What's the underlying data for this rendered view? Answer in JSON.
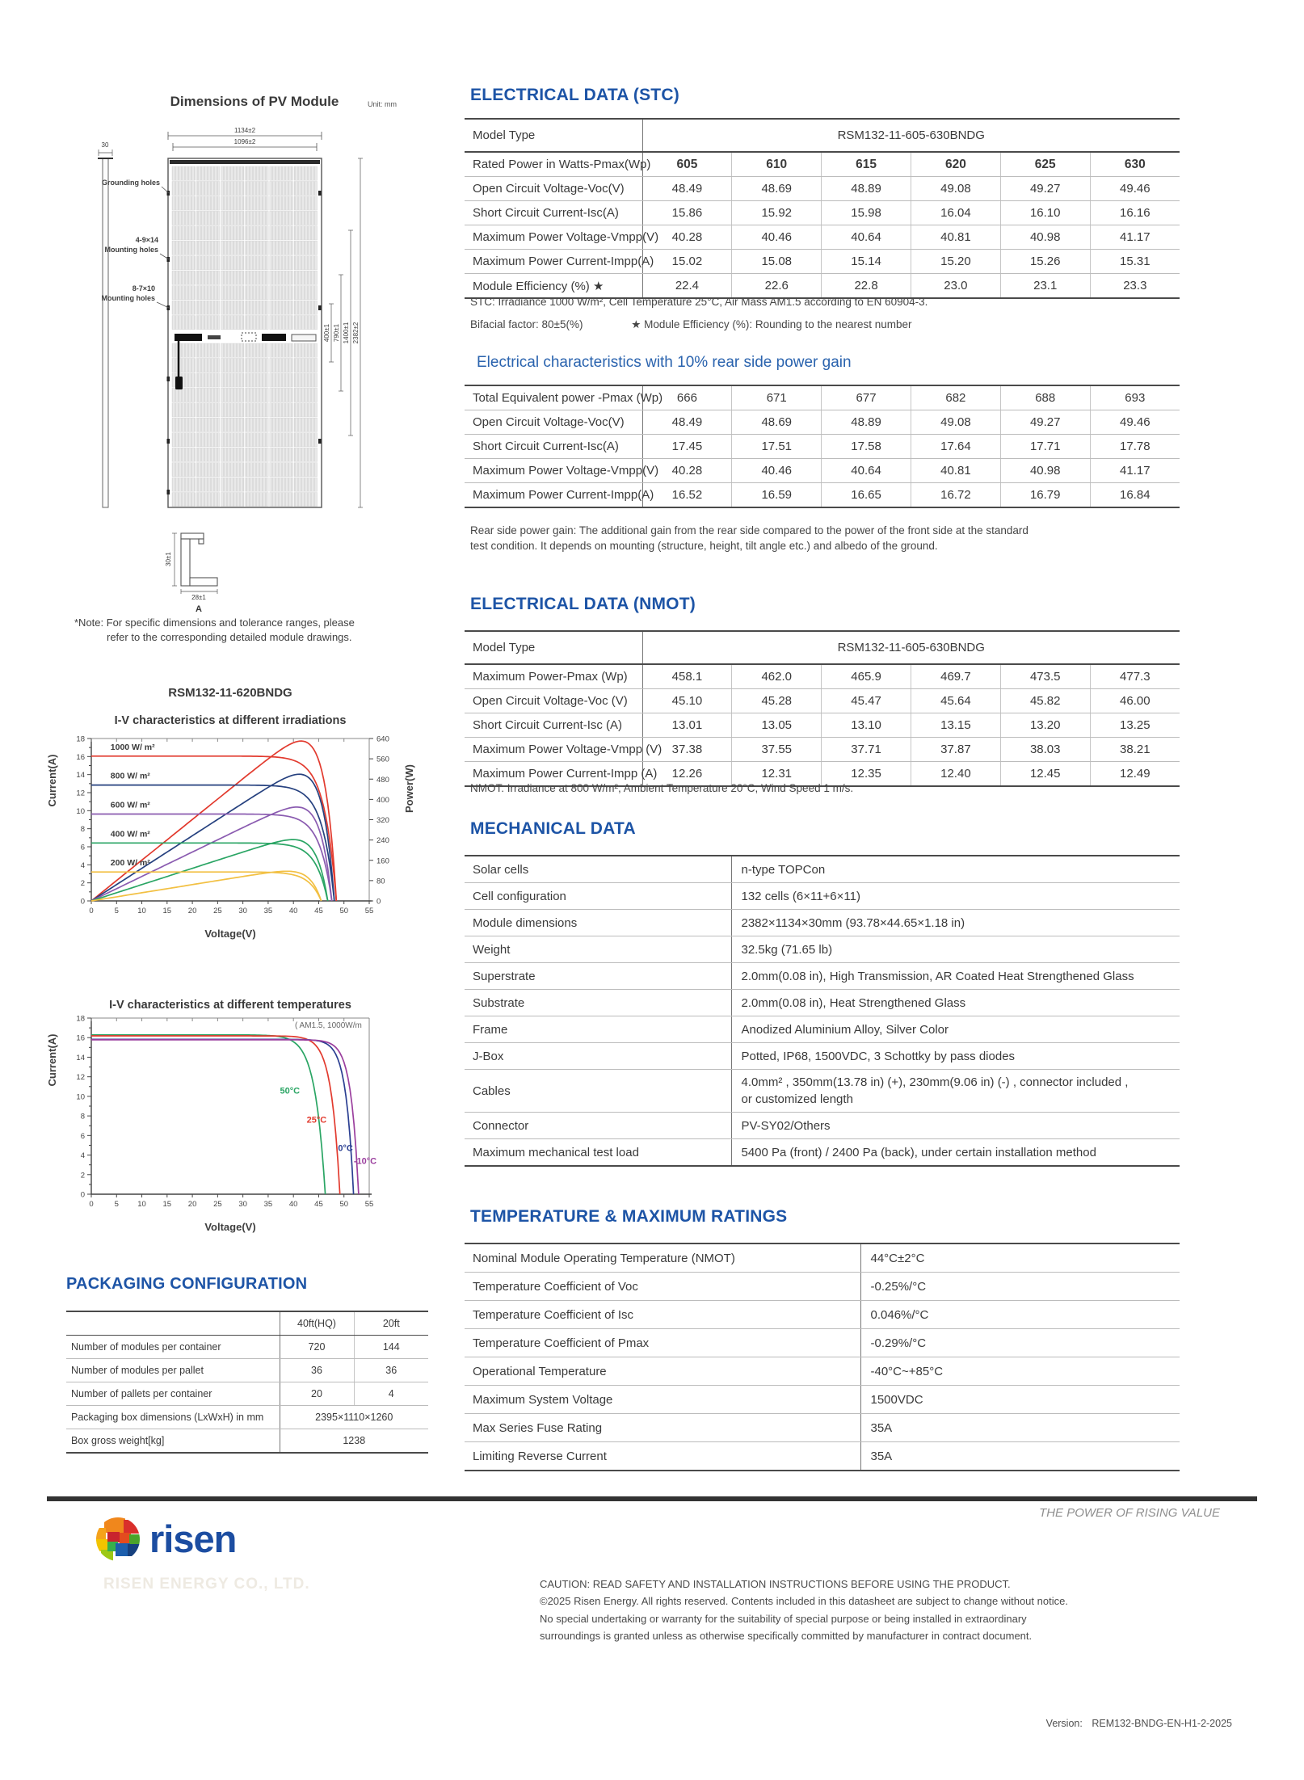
{
  "colors": {
    "heading_blue": "#1d54a6",
    "subheading_blue": "#2a63ae",
    "brand_blue": "#1c4da1",
    "rule_dark": "#333333"
  },
  "diagram": {
    "title": "Dimensions of PV Module",
    "unit": "Unit: mm",
    "dim_width": "1134±2",
    "dim_width_inner": "1096±2",
    "dim_side": "30",
    "label_grounding": "Grounding holes",
    "label_mount1a": "4-9×14",
    "label_mount1b": "Mounting holes",
    "label_mount2a": "8-7×10",
    "label_mount2b": "Mounting holes",
    "dim_r1": "400±1",
    "dim_r2": "790±1",
    "dim_r3": "1400±1",
    "dim_r4": "2382±2",
    "frame_h": "30±1",
    "frame_w": "28±1",
    "frame_label": "A",
    "note1": "*Note: For specific dimensions and tolerance ranges, please",
    "note2": "refer to the corresponding detailed module drawings."
  },
  "stc": {
    "heading": "ELECTRICAL DATA (STC)",
    "model_label": "Model Type",
    "model_value": "RSM132-11-605-630BNDG",
    "rows": [
      {
        "label": "Rated Power in Watts-Pmax(Wp)",
        "bold": true,
        "values": [
          "605",
          "610",
          "615",
          "620",
          "625",
          "630"
        ]
      },
      {
        "label": "Open Circuit Voltage-Voc(V)",
        "values": [
          "48.49",
          "48.69",
          "48.89",
          "49.08",
          "49.27",
          "49.46"
        ]
      },
      {
        "label": "Short Circuit Current-Isc(A)",
        "values": [
          "15.86",
          "15.92",
          "15.98",
          "16.04",
          "16.10",
          "16.16"
        ]
      },
      {
        "label": "Maximum Power Voltage-Vmpp(V)",
        "values": [
          "40.28",
          "40.46",
          "40.64",
          "40.81",
          "40.98",
          "41.17"
        ]
      },
      {
        "label": "Maximum Power Current-Impp(A)",
        "values": [
          "15.02",
          "15.08",
          "15.14",
          "15.20",
          "15.26",
          "15.31"
        ]
      },
      {
        "label": "Module Efficiency (%) ★",
        "values": [
          "22.4",
          "22.6",
          "22.8",
          "23.0",
          "23.1",
          "23.3"
        ]
      }
    ],
    "note": "STC: Irradiance 1000 W/m², Cell Temperature 25°C, Air Mass AM1.5 according to EN 60904-3.",
    "bifacial_note": "Bifacial factor: 80±5(%)",
    "efficiency_note": "★ Module Efficiency (%): Rounding to the nearest number"
  },
  "rear": {
    "heading": "Electrical characteristics with 10% rear side power gain",
    "rows": [
      {
        "label": "Total Equivalent power -Pmax (Wp)",
        "values": [
          "666",
          "671",
          "677",
          "682",
          "688",
          "693"
        ]
      },
      {
        "label": "Open Circuit Voltage-Voc(V)",
        "values": [
          "48.49",
          "48.69",
          "48.89",
          "49.08",
          "49.27",
          "49.46"
        ]
      },
      {
        "label": "Short Circuit Current-Isc(A)",
        "values": [
          "17.45",
          "17.51",
          "17.58",
          "17.64",
          "17.71",
          "17.78"
        ]
      },
      {
        "label": "Maximum Power Voltage-Vmpp(V)",
        "values": [
          "40.28",
          "40.46",
          "40.64",
          "40.81",
          "40.98",
          "41.17"
        ]
      },
      {
        "label": "Maximum Power Current-Impp(A)",
        "values": [
          "16.52",
          "16.59",
          "16.65",
          "16.72",
          "16.79",
          "16.84"
        ]
      }
    ],
    "note1": "Rear side power gain: The additional gain from the rear side compared to the power of the front side at the standard",
    "note2": "test condition. It depends on mounting (structure, height, tilt angle etc.) and albedo of the ground."
  },
  "nmot": {
    "heading": "ELECTRICAL DATA (NMOT)",
    "model_label": "Model Type",
    "model_value": "RSM132-11-605-630BNDG",
    "rows": [
      {
        "label": "Maximum Power-Pmax (Wp)",
        "values": [
          "458.1",
          "462.0",
          "465.9",
          "469.7",
          "473.5",
          "477.3"
        ]
      },
      {
        "label": "Open Circuit Voltage-Voc (V)",
        "values": [
          "45.10",
          "45.28",
          "45.47",
          "45.64",
          "45.82",
          "46.00"
        ]
      },
      {
        "label": "Short Circuit Current-Isc (A)",
        "values": [
          "13.01",
          "13.05",
          "13.10",
          "13.15",
          "13.20",
          "13.25"
        ]
      },
      {
        "label": "Maximum Power Voltage-Vmpp (V)",
        "values": [
          "37.38",
          "37.55",
          "37.71",
          "37.87",
          "38.03",
          "38.21"
        ]
      },
      {
        "label": "Maximum Power Current-Impp (A)",
        "values": [
          "12.26",
          "12.31",
          "12.35",
          "12.40",
          "12.45",
          "12.49"
        ]
      }
    ],
    "note": "NMOT: Irradiance at 800 W/m², Ambient Temperature 20°C, Wind Speed 1 m/s."
  },
  "mechanical": {
    "heading": "MECHANICAL DATA",
    "rows": [
      {
        "label": "Solar cells",
        "value": "n-type TOPCon"
      },
      {
        "label": "Cell configuration",
        "value": "132 cells (6×11+6×11)"
      },
      {
        "label": "Module dimensions",
        "value": "2382×1134×30mm (93.78×44.65×1.18 in)"
      },
      {
        "label": "Weight",
        "value": "32.5kg (71.65 lb)"
      },
      {
        "label": "Superstrate",
        "value": "2.0mm(0.08 in), High Transmission, AR Coated Heat Strengthened Glass"
      },
      {
        "label": "Substrate",
        "value": "2.0mm(0.08 in), Heat Strengthened Glass"
      },
      {
        "label": "Frame",
        "value": "Anodized Aluminium Alloy, Silver Color"
      },
      {
        "label": "J-Box",
        "value": "Potted, IP68, 1500VDC, 3 Schottky by pass diodes"
      },
      {
        "label": "Cables",
        "value": [
          "4.0mm² , 350mm(13.78 in) (+), 230mm(9.06 in) (-) , connector included ,",
          "or customized length"
        ]
      },
      {
        "label": "Connector",
        "value": "PV-SY02/Others"
      },
      {
        "label": "Maximum mechanical test load",
        "value": "5400 Pa (front) / 2400 Pa (back), under certain installation method"
      }
    ]
  },
  "temperature": {
    "heading": "TEMPERATURE & MAXIMUM RATINGS",
    "rows": [
      {
        "label": "Nominal Module Operating Temperature (NMOT)",
        "value": "44°C±2°C"
      },
      {
        "label": "Temperature Coefficient of Voc",
        "value": "-0.25%/°C"
      },
      {
        "label": "Temperature Coefficient of Isc",
        "value": "0.046%/°C"
      },
      {
        "label": "Temperature Coefficient of Pmax",
        "value": "-0.29%/°C"
      },
      {
        "label": "Operational Temperature",
        "value": "-40°C~+85°C"
      },
      {
        "label": "Maximum System Voltage",
        "value": "1500VDC"
      },
      {
        "label": "Max Series Fuse Rating",
        "value": "35A"
      },
      {
        "label": "Limiting Reverse Current",
        "value": "35A"
      }
    ]
  },
  "packaging": {
    "heading": "PACKAGING CONFIGURATION",
    "col_headers": [
      "40ft(HQ)",
      "20ft"
    ],
    "rows": [
      {
        "label": "Number of modules per container",
        "values": [
          "720",
          "144"
        ]
      },
      {
        "label": "Number of modules per pallet",
        "values": [
          "36",
          "36"
        ]
      },
      {
        "label": "Number of pallets per container",
        "values": [
          "20",
          "4"
        ]
      }
    ],
    "span_rows": [
      {
        "label": "Packaging box dimensions (LxWxH) in mm",
        "value": "2395×1110×1260"
      },
      {
        "label": "Box gross weight[kg]",
        "value": "1238"
      }
    ]
  },
  "chart_data": [
    {
      "type": "line",
      "title": "RSM132-11-620BNDG",
      "subtitle": "I-V characteristics at different irradiations",
      "xlabel": "Voltage(V)",
      "ylabel_left": "Current(A)",
      "ylabel_right": "Power(W)",
      "xlim": [
        0,
        55
      ],
      "xstep": 5,
      "ylim_left": [
        0,
        18
      ],
      "ystep_left": 2,
      "ylim_right": [
        0,
        640
      ],
      "ystep_right": 80,
      "grid": false,
      "series": [
        {
          "label": "1000 W/ m²",
          "color": "#e23a2e",
          "isc": 16.05,
          "voc": 48.5,
          "a": 2.4,
          "pmax": 620
        },
        {
          "label": "800 W/ m²",
          "color": "#26417f",
          "isc": 12.84,
          "voc": 48.1,
          "a": 2.4,
          "pmax": 494
        },
        {
          "label": "600 W/ m²",
          "color": "#8a5bb0",
          "isc": 9.63,
          "voc": 47.6,
          "a": 2.4,
          "pmax": 368
        },
        {
          "label": "400 W/ m²",
          "color": "#2aa564",
          "isc": 6.42,
          "voc": 46.8,
          "a": 2.4,
          "pmax": 241
        },
        {
          "label": "200 W/ m²",
          "color": "#f2c043",
          "isc": 3.21,
          "voc": 45.5,
          "a": 2.4,
          "pmax": 117
        }
      ]
    },
    {
      "type": "line",
      "title": "I-V characteristics at different temperatures",
      "condition_note": "( AM1.5,  1000W/m",
      "xlabel": "Voltage(V)",
      "ylabel_left": "Current(A)",
      "xlim": [
        0,
        55
      ],
      "xstep": 5,
      "ylim_left": [
        0,
        18
      ],
      "ystep_left": 2,
      "grid": false,
      "series": [
        {
          "label": "50°C",
          "color": "#2aa564",
          "isc": 16.28,
          "voc": 46.3,
          "a": 2.0,
          "label_pos": [
            39.3,
            10.3
          ]
        },
        {
          "label": "25°C",
          "color": "#e23a2e",
          "isc": 16.18,
          "voc": 49.2,
          "a": 1.7,
          "label_pos": [
            44.6,
            7.3
          ]
        },
        {
          "label": "0°C",
          "color": "#2b3f92",
          "isc": 15.82,
          "voc": 51.9,
          "a": 1.5,
          "label_pos": [
            50.3,
            4.4
          ]
        },
        {
          "label": "-10°C",
          "color": "#9b3f9e",
          "isc": 15.78,
          "voc": 52.9,
          "a": 1.5,
          "label_pos": [
            54.2,
            3.1
          ]
        }
      ]
    }
  ],
  "footer": {
    "tagline": "THE POWER OF RISING VALUE",
    "brand": "risen",
    "ghost": "RISEN ENERGY CO., LTD.",
    "caution_lines": [
      "CAUTION: READ SAFETY AND INSTALLATION INSTRUCTIONS BEFORE USING THE PRODUCT.",
      "©2025 Risen Energy. All rights reserved. Contents included in this datasheet are subject to change without notice.",
      "No special undertaking or warranty for the suitability of special purpose or being installed in extraordinary",
      "surroundings is granted unless as otherwise specifically committed by manufacturer in contract document."
    ],
    "version_label": "Version:",
    "version_value": "REM132-BNDG-EN-H1-2-2025"
  }
}
